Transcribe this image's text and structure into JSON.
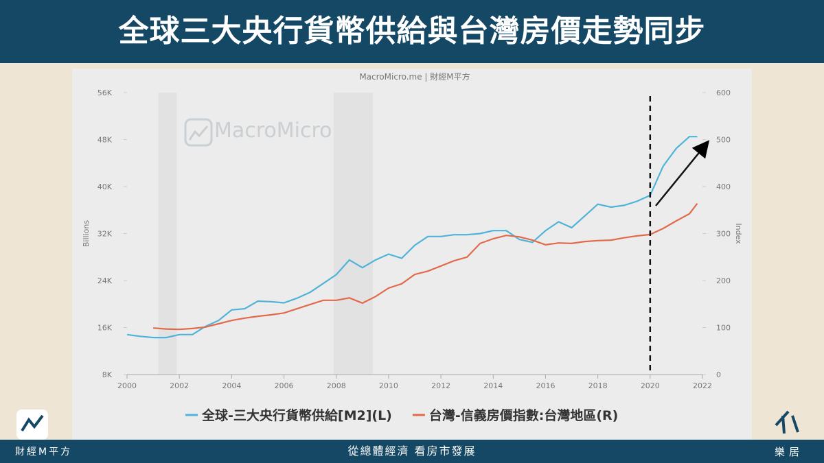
{
  "header": {
    "title": "全球三大央行貨幣供給與台灣房價走勢同步"
  },
  "footer": {
    "slogan": "從總體經濟 看房市發展",
    "left_brand": "財經M平方",
    "right_brand": "樂居"
  },
  "chart_data": {
    "type": "line",
    "source": "MacroMicro.me | 財經M平方",
    "watermark": "MacroMicro",
    "ylabel": "Billions",
    "y2label": "Index",
    "x": [
      2000,
      2000.5,
      2001,
      2001.5,
      2002,
      2002.5,
      2003,
      2003.5,
      2004,
      2004.5,
      2005,
      2005.5,
      2006,
      2006.5,
      2007,
      2007.5,
      2008,
      2008.5,
      2009,
      2009.5,
      2010,
      2010.5,
      2011,
      2011.5,
      2012,
      2012.5,
      2013,
      2013.5,
      2014,
      2014.5,
      2015,
      2015.5,
      2016,
      2016.5,
      2017,
      2017.5,
      2018,
      2018.5,
      2019,
      2019.5,
      2020,
      2020.5,
      2021,
      2021.5,
      2021.8
    ],
    "series": [
      {
        "name": "全球-三大央行貨幣供給[M2](L)",
        "color": "#4fb3d9",
        "values": [
          14800,
          14500,
          14300,
          14300,
          14800,
          14800,
          16200,
          17200,
          19000,
          19200,
          20500,
          20400,
          20200,
          21000,
          22000,
          23500,
          25000,
          27500,
          26200,
          27500,
          28500,
          27800,
          30000,
          31500,
          31500,
          31800,
          31800,
          32000,
          32500,
          32500,
          31000,
          30500,
          32500,
          34000,
          33000,
          35000,
          37000,
          36500,
          36800,
          37500,
          38500,
          43500,
          46500,
          48500,
          48500
        ]
      },
      {
        "name": "台灣-信義房價指數:台灣地區(R)",
        "color": "#e2694a",
        "axis": "y2",
        "values": [
          null,
          null,
          99,
          97,
          96,
          98,
          101,
          108,
          115,
          120,
          124,
          127,
          131,
          140,
          149,
          158,
          158,
          163,
          152,
          166,
          184,
          193,
          213,
          220,
          231,
          242,
          250,
          279,
          289,
          296,
          293,
          286,
          276,
          280,
          279,
          283,
          285,
          286,
          291,
          295,
          298,
          311,
          327,
          342,
          364
        ]
      }
    ],
    "xlim": [
      2000,
      2022
    ],
    "xticks": [
      2000,
      2002,
      2004,
      2006,
      2008,
      2010,
      2012,
      2014,
      2016,
      2018,
      2020,
      2022
    ],
    "ylim": [
      8000,
      56000
    ],
    "yticks": [
      {
        "value": 8000,
        "label": "8K"
      },
      {
        "value": 16000,
        "label": "16K"
      },
      {
        "value": 24000,
        "label": "24K"
      },
      {
        "value": 32000,
        "label": "32K"
      },
      {
        "value": 40000,
        "label": "40K"
      },
      {
        "value": 48000,
        "label": "48K"
      },
      {
        "value": 56000,
        "label": "56K"
      }
    ],
    "y2lim": [
      0,
      600
    ],
    "y2ticks": [
      0,
      100,
      200,
      300,
      400,
      500,
      600
    ],
    "shaded": [
      [
        2001.2,
        2001.9
      ],
      [
        2007.9,
        2009.4
      ]
    ],
    "vline": 2020,
    "legend": "bottom"
  }
}
